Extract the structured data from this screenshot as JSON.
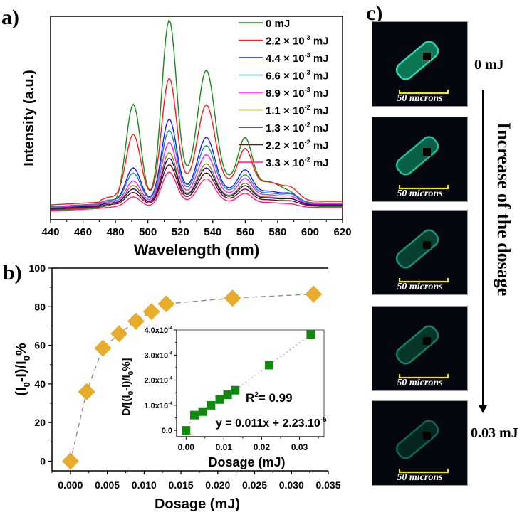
{
  "panels": {
    "a": "a)",
    "b": "b)",
    "c": "c)"
  },
  "chart_data": [
    {
      "id": "spectra",
      "type": "line",
      "title": "",
      "xlabel": "Wavelength (nm)",
      "ylabel": "Intensity (a.u.)",
      "xlim": [
        440,
        620
      ],
      "xticks": [
        440,
        460,
        480,
        500,
        520,
        540,
        560,
        580,
        600,
        620
      ],
      "yticks_visible": false,
      "legend_position": "top-right",
      "peaks_nm": [
        491,
        513,
        536,
        560,
        589
      ],
      "series": [
        {
          "name": "0 mJ",
          "color": "#1a8a1a",
          "peak_heights": [
            0.58,
            1.0,
            0.66,
            0.27,
            0.03
          ],
          "baseline": 0.01
        },
        {
          "name": "2.2 × 10-3 mJ",
          "label_base": "2.2 × 10",
          "label_exp": "-3",
          "label_unit": " mJ",
          "color": "#ff1a1a",
          "peak_heights": [
            0.38,
            0.66,
            0.47,
            0.21,
            0.04
          ],
          "baseline": 0.04
        },
        {
          "name": "4.4 × 10-3 mJ",
          "label_base": "4.4 × 10",
          "label_exp": "-3",
          "label_unit": " mJ",
          "color": "#1a1aff",
          "peak_heights": [
            0.2,
            0.45,
            0.32,
            0.13,
            0.03
          ],
          "baseline": 0.03
        },
        {
          "name": "6.6 × 10-3 mJ",
          "label_base": "6.6 × 10",
          "label_exp": "-3",
          "label_unit": " mJ",
          "color": "#1a9090",
          "peak_heights": [
            0.17,
            0.39,
            0.28,
            0.11,
            0.03
          ],
          "baseline": 0.03
        },
        {
          "name": "8.9 × 10-3 mJ",
          "label_base": "8.9 × 10",
          "label_exp": "-3",
          "label_unit": " mJ",
          "color": "#ff1aff",
          "peak_heights": [
            0.13,
            0.33,
            0.24,
            0.1,
            0.025
          ],
          "baseline": 0.025
        },
        {
          "name": "1.1 × 10-2 mJ",
          "label_base": "1.1 × 10",
          "label_exp": "-2",
          "label_unit": " mJ",
          "color": "#8a8a10",
          "peak_heights": [
            0.11,
            0.28,
            0.2,
            0.085,
            0.02
          ],
          "baseline": 0.02
        },
        {
          "name": "1.3 × 10-2 mJ",
          "label_base": "1.3 × 10",
          "label_exp": "-2",
          "label_unit": " mJ",
          "color": "#10108a",
          "peak_heights": [
            0.09,
            0.25,
            0.18,
            0.075,
            0.02
          ],
          "baseline": 0.02
        },
        {
          "name": "2.2 × 10-2 mJ",
          "label_base": "2.2 × 10",
          "label_exp": "-2",
          "label_unit": " mJ",
          "color": "#7a0a0a",
          "peak_heights": [
            0.075,
            0.22,
            0.16,
            0.065,
            0.015
          ],
          "baseline": 0.015
        },
        {
          "name": "3.3 × 10-2 mJ",
          "label_base": "3.3 × 10",
          "label_exp": "-2",
          "label_unit": " mJ",
          "color": "#ff1a80",
          "peak_heights": [
            0.06,
            0.19,
            0.14,
            0.055,
            0.01
          ],
          "baseline": 0.005
        }
      ]
    },
    {
      "id": "quenching",
      "type": "scatter",
      "title": "",
      "xlabel": "Dosage (mJ)",
      "ylabel": "(I0-I)/I0%",
      "ylabel_parts": [
        "(I",
        "0",
        "-I)/I",
        "0",
        "%"
      ],
      "xlim": [
        -0.0025,
        0.035
      ],
      "ylim": [
        -5,
        100
      ],
      "xticks": [
        0.0,
        0.005,
        0.01,
        0.015,
        0.02,
        0.025,
        0.03,
        0.035
      ],
      "xtick_labels": [
        "0.000",
        "0.005",
        "0.010",
        "0.015",
        "0.020",
        "0.025",
        "0.030",
        "0.035"
      ],
      "yticks": [
        0,
        20,
        40,
        60,
        80,
        100
      ],
      "marker": "diamond",
      "marker_color": "#e8ac2c",
      "line_style": "dashed",
      "line_color": "#888888",
      "x": [
        0.0,
        0.0022,
        0.0044,
        0.0066,
        0.0089,
        0.011,
        0.013,
        0.022,
        0.033
      ],
      "y": [
        0,
        36,
        58.5,
        66,
        72.5,
        77.5,
        81.5,
        84.5,
        86.5
      ]
    },
    {
      "id": "inset",
      "type": "scatter",
      "title": "",
      "xlabel": "Dosage (mJ)",
      "ylabel": "D/[(I0-I)/I0%]",
      "ylabel_parts": [
        "D/[(I",
        "0",
        "-I)/I",
        "0",
        "%]"
      ],
      "xlim": [
        -0.0025,
        0.0365
      ],
      "ylim": [
        -2.5e-05,
        0.0004
      ],
      "xticks": [
        0.0,
        0.01,
        0.02,
        0.03
      ],
      "xtick_labels": [
        "0.00",
        "0.01",
        "0.02",
        "0.03"
      ],
      "yticks": [
        0,
        0.0001,
        0.0002,
        0.0003,
        0.0004
      ],
      "ytick_labels": [
        {
          "base": "0.0",
          "exp": ""
        },
        {
          "base": "1.0x10",
          "exp": "-4"
        },
        {
          "base": "2.0x10",
          "exp": "-4"
        },
        {
          "base": "3.0x10",
          "exp": "-4"
        },
        {
          "base": "4.0x10",
          "exp": "-4"
        }
      ],
      "marker": "square",
      "marker_color": "#0f8a0f",
      "line_style": "dotted",
      "line_color": "#888888",
      "x": [
        0.0,
        0.0022,
        0.0044,
        0.0066,
        0.0089,
        0.011,
        0.013,
        0.022,
        0.033
      ],
      "y": [
        0.0,
        6.1e-05,
        7.5e-05,
        0.0001,
        0.000123,
        0.000142,
        0.00016,
        0.00026,
        0.000382
      ],
      "annotations": {
        "r2_base": "R",
        "r2_exp": "2",
        "r2_rest": "= 0.99",
        "fit_base": "y = 0.011x + 2.23.10",
        "fit_exp": "-5"
      }
    }
  ],
  "micrographs": {
    "scale_label": "50 microns",
    "brightness": [
      1.0,
      0.85,
      0.6,
      0.5,
      0.35
    ],
    "start_label": "0 mJ",
    "end_label": "0.03 mJ",
    "arrow_label": "Increase of the dosage"
  }
}
